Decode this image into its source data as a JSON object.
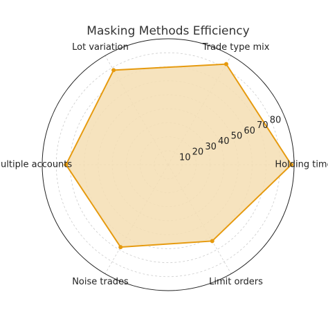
{
  "chart_data": {
    "type": "radar",
    "title": "Masking Methods Efficiency",
    "categories": [
      "Holding time",
      "Trade type mix",
      "Lot variation",
      "Multiple accounts",
      "Noise trades",
      "Limit orders"
    ],
    "values": [
      88,
      83,
      78,
      73,
      68,
      63
    ],
    "color": "#e69a0e",
    "fill_color": "#f5deb3",
    "ylim": [
      0,
      90
    ],
    "yticks": [
      10,
      20,
      30,
      40,
      50,
      60,
      70,
      80
    ],
    "grid": true
  }
}
